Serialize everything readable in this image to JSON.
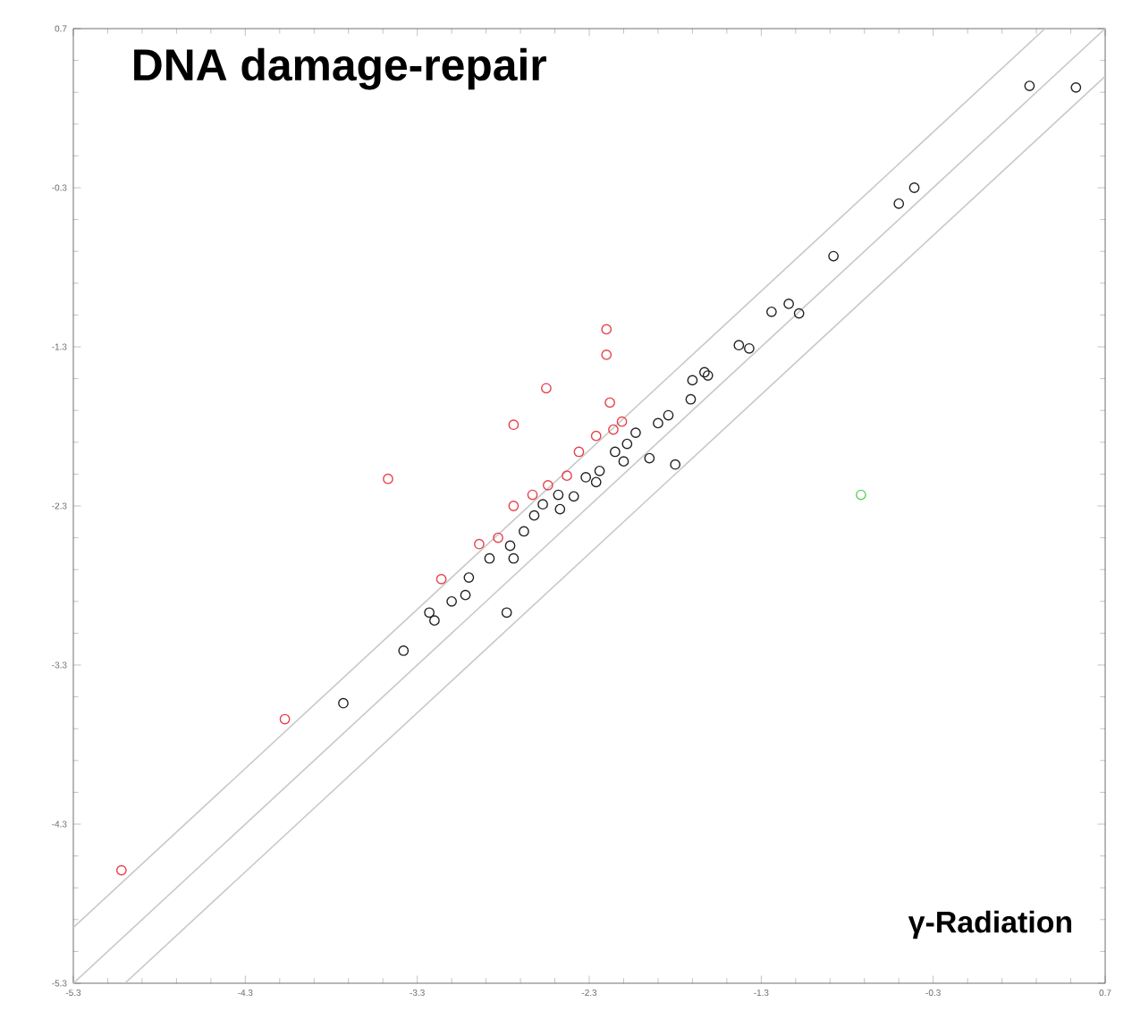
{
  "chart_data": {
    "type": "scatter",
    "title": "DNA damage-repair",
    "annotations": [
      "γ-Radiation"
    ],
    "xlim": [
      -5.3,
      0.7
    ],
    "ylim": [
      -5.3,
      0.7
    ],
    "xticks": [
      -5.3,
      -4.3,
      -3.3,
      -2.3,
      -1.3,
      -0.3,
      0.7
    ],
    "yticks": [
      -5.3,
      -4.3,
      -3.3,
      -2.3,
      -1.3,
      -0.3,
      0.7
    ],
    "grid": false,
    "marker": "circle",
    "series": [
      {
        "type": "line",
        "color": "#c8c8c8",
        "marker": "none",
        "line_style": "solid",
        "x": [
          -5.3,
          0.35
        ],
        "values": [
          -4.95,
          0.7
        ]
      },
      {
        "type": "line",
        "color": "#c8c8c8",
        "marker": "none",
        "line_style": "solid",
        "x": [
          -5.3,
          0.7
        ],
        "values": [
          -5.3,
          0.7
        ]
      },
      {
        "type": "line",
        "color": "#c8c8c8",
        "marker": "none",
        "line_style": "solid",
        "x": [
          -5.0,
          0.7
        ],
        "values": [
          -5.3,
          0.4
        ]
      },
      {
        "color": "#222222",
        "x": [
          -1.43,
          -1.37,
          -1.7,
          -1.61,
          -1.71,
          -1.84,
          -1.9,
          -2.03,
          -2.08,
          -2.15,
          -1.95,
          -1.8,
          -2.1,
          -2.24,
          -2.26,
          -2.32,
          -2.39,
          -2.48,
          -2.47,
          -2.57,
          -2.62,
          -2.68,
          -2.76,
          -2.74,
          -2.88,
          -3.0,
          -3.02,
          -3.1,
          -3.23,
          -3.2,
          -2.78,
          -3.38,
          -3.73,
          0.26,
          0.53,
          -0.41,
          -0.5,
          -0.88,
          -1.24,
          -1.14,
          -1.08,
          -1.63
        ],
        "values": [
          -1.29,
          -1.31,
          -1.51,
          -1.48,
          -1.63,
          -1.73,
          -1.78,
          -1.84,
          -1.91,
          -1.96,
          -2.0,
          -2.04,
          -2.02,
          -2.08,
          -2.15,
          -2.12,
          -2.24,
          -2.23,
          -2.32,
          -2.29,
          -2.36,
          -2.46,
          -2.55,
          -2.63,
          -2.63,
          -2.75,
          -2.86,
          -2.9,
          -2.97,
          -3.02,
          -2.97,
          -3.21,
          -3.54,
          0.34,
          0.33,
          -0.3,
          -0.4,
          -0.73,
          -1.08,
          -1.03,
          -1.09,
          -1.46
        ]
      },
      {
        "color": "#e8404a",
        "x": [
          -2.2,
          -2.2,
          -2.55,
          -2.74,
          -3.47,
          -2.18,
          -2.11,
          -2.16,
          -2.26,
          -2.36,
          -2.43,
          -2.54,
          -2.63,
          -2.74,
          -2.83,
          -2.94,
          -3.16,
          -4.07,
          -5.02
        ],
        "values": [
          -1.19,
          -1.35,
          -1.56,
          -1.79,
          -2.13,
          -1.65,
          -1.77,
          -1.82,
          -1.86,
          -1.96,
          -2.11,
          -2.17,
          -2.23,
          -2.3,
          -2.5,
          -2.54,
          -2.76,
          -3.64,
          -4.59
        ]
      },
      {
        "color": "#5ad25a",
        "x": [
          -0.72
        ],
        "values": [
          -2.23
        ]
      }
    ]
  }
}
